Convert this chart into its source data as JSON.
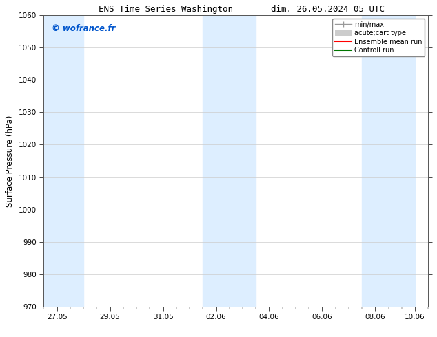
{
  "title_left": "ENS Time Series Washington",
  "title_right": "dim. 26.05.2024 05 UTC",
  "ylabel": "Surface Pressure (hPa)",
  "ylim": [
    970,
    1060
  ],
  "yticks": [
    970,
    980,
    990,
    1000,
    1010,
    1020,
    1030,
    1040,
    1050,
    1060
  ],
  "x_min": 0.0,
  "x_max": 14.0,
  "xtick_labels": [
    "27.05",
    "29.05",
    "31.05",
    "02.06",
    "04.06",
    "06.06",
    "08.06",
    "10.06"
  ],
  "xtick_positions": [
    0.5,
    2.5,
    4.5,
    6.5,
    8.5,
    10.5,
    12.5,
    14.0
  ],
  "bg_color": "#ffffff",
  "plot_bg_color": "#ffffff",
  "shaded_bands": [
    {
      "x_start": 0.0,
      "x_end": 1.5,
      "color": "#ddeeff"
    },
    {
      "x_start": 6.0,
      "x_end": 8.0,
      "color": "#ddeeff"
    },
    {
      "x_start": 12.0,
      "x_end": 14.0,
      "color": "#ddeeff"
    }
  ],
  "watermark": "© wofrance.fr",
  "watermark_color": "#0055cc",
  "legend_items": [
    {
      "label": "min/max",
      "color": "#999999",
      "lw": 1
    },
    {
      "label": "acute;cart type",
      "color": "#cccccc",
      "lw": 6
    },
    {
      "label": "Ensemble mean run",
      "color": "#ff0000",
      "lw": 1
    },
    {
      "label": "Controll run",
      "color": "#007700",
      "lw": 1.5
    }
  ],
  "grid_color": "#cccccc",
  "tick_label_fontsize": 7.5,
  "axis_label_fontsize": 8.5,
  "title_fontsize": 9,
  "legend_fontsize": 7
}
